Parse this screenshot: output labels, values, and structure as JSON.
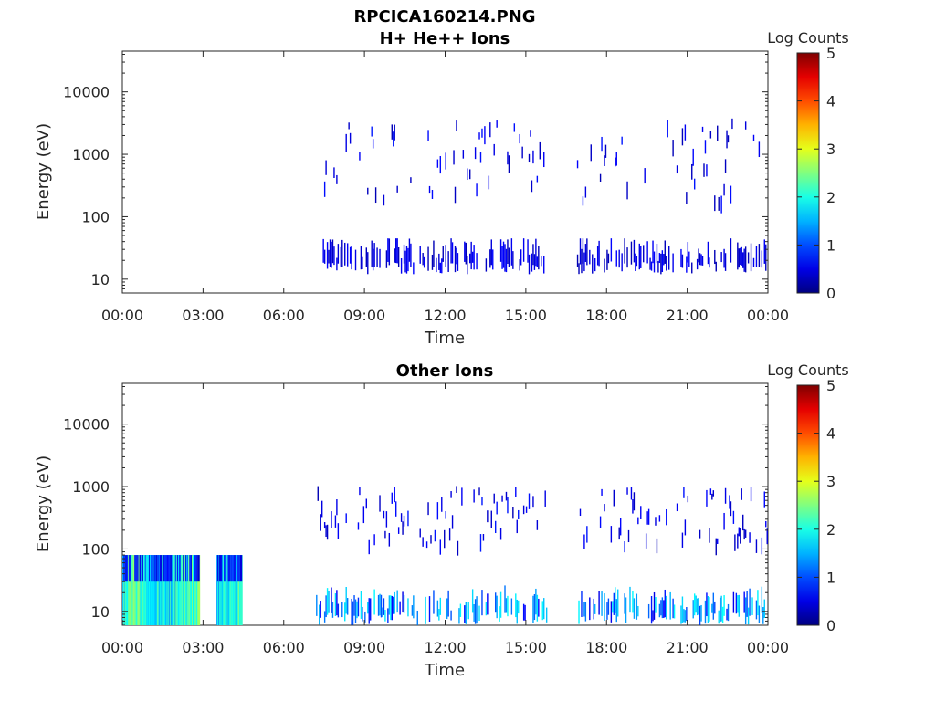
{
  "figure": {
    "title": "RPCICA160214.PNG"
  },
  "chart_data": [
    {
      "type": "heatmap",
      "title": "H+ He++ Ions",
      "xlabel": "Time",
      "ylabel": "Energy (eV)",
      "yscale": "log",
      "ylim": [
        6,
        45000
      ],
      "xlim": [
        "00:00",
        "24:00"
      ],
      "x_tick_labels": [
        "00:00",
        "03:00",
        "06:00",
        "09:00",
        "12:00",
        "15:00",
        "18:00",
        "21:00",
        "00:00"
      ],
      "y_tick_labels": [
        "10",
        "100",
        "1000",
        "10000"
      ],
      "colorbar": {
        "label": "Log Counts",
        "ticks": [
          "0",
          "1",
          "2",
          "3",
          "4",
          "5"
        ],
        "range": [
          0,
          5
        ],
        "colormap": "jet"
      },
      "grid": false,
      "data_coverage_hours": [
        [
          7.3,
          15.8
        ],
        [
          16.9,
          24.0
        ]
      ],
      "energy_bands_eV": [
        [
          12,
          45
        ],
        [
          150,
          3000
        ]
      ],
      "notes_hidden": null
    },
    {
      "type": "heatmap",
      "title": "Other Ions",
      "xlabel": "Time",
      "ylabel": "Energy (eV)",
      "yscale": "log",
      "ylim": [
        6,
        45000
      ],
      "xlim": [
        "00:00",
        "24:00"
      ],
      "x_tick_labels": [
        "00:00",
        "03:00",
        "06:00",
        "09:00",
        "12:00",
        "15:00",
        "18:00",
        "21:00",
        "00:00"
      ],
      "y_tick_labels": [
        "10",
        "100",
        "1000",
        "10000"
      ],
      "colorbar": {
        "label": "Log Counts",
        "ticks": [
          "0",
          "1",
          "2",
          "3",
          "4",
          "5"
        ],
        "range": [
          0,
          5
        ],
        "colormap": "jet"
      },
      "grid": false,
      "data_coverage_hours": [
        [
          0.0,
          2.8
        ],
        [
          3.5,
          4.4
        ],
        [
          7.2,
          15.8
        ],
        [
          16.9,
          24.0
        ]
      ],
      "energy_bands_eV": [
        [
          6,
          80
        ],
        [
          100,
          800
        ]
      ]
    }
  ]
}
